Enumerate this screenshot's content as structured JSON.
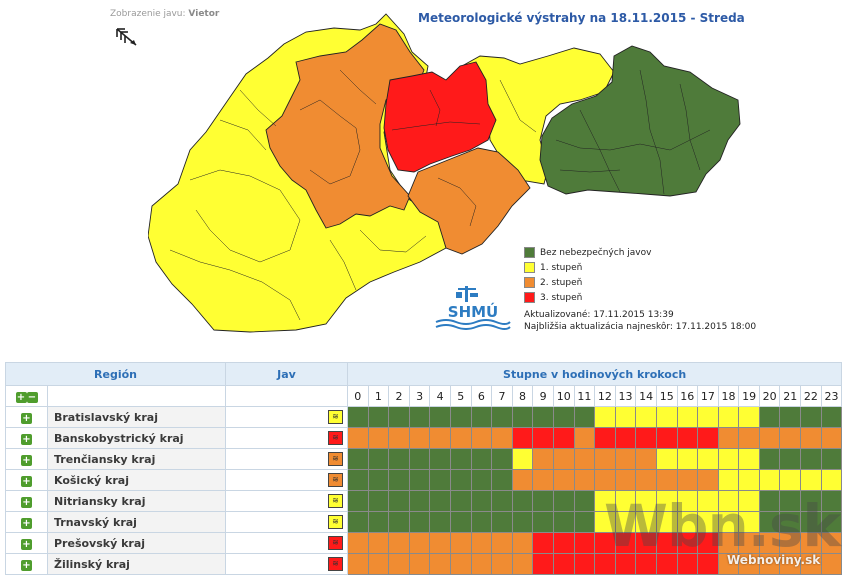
{
  "header": {
    "view_label": "Zobrazenie javu:",
    "view_value": "Vietor",
    "title": "Meteorologické výstrahy na 18.11.2015 - Streda"
  },
  "legend": [
    {
      "label": "Bez nebezpečných javov",
      "color": "#4f7b3a"
    },
    {
      "label": "1. stupeň",
      "color": "#ffff33"
    },
    {
      "label": "2. stupeň",
      "color": "#f08c32"
    },
    {
      "label": "3. stupeň",
      "color": "#ff1a1a"
    }
  ],
  "updates": {
    "updated_label": "Aktualizované:",
    "updated_value": "17.11.2015 13:39",
    "next_label": "Najbližšia aktualizácia najneskôr:",
    "next_value": "17.11.2015 18:00"
  },
  "logo_text": "SHMÚ",
  "table": {
    "col_region": "Región",
    "col_jav": "Jav",
    "col_hours": "Stupne v hodinových krokoch",
    "hours": [
      "0",
      "1",
      "2",
      "3",
      "4",
      "5",
      "6",
      "7",
      "8",
      "9",
      "10",
      "11",
      "12",
      "13",
      "14",
      "15",
      "16",
      "17",
      "18",
      "19",
      "20",
      "21",
      "22",
      "23"
    ],
    "level_colors": [
      "#4f7b3a",
      "#ffff33",
      "#f08c32",
      "#ff1a1a"
    ],
    "rows": [
      {
        "region": "Bratislavský kraj",
        "jav_level": 1,
        "levels": [
          0,
          0,
          0,
          0,
          0,
          0,
          0,
          0,
          0,
          0,
          0,
          0,
          1,
          1,
          1,
          1,
          1,
          1,
          1,
          1,
          0,
          0,
          0,
          0
        ]
      },
      {
        "region": "Banskobystrický kraj",
        "jav_level": 3,
        "levels": [
          2,
          2,
          2,
          2,
          2,
          2,
          2,
          2,
          3,
          3,
          3,
          2,
          3,
          3,
          3,
          3,
          3,
          3,
          2,
          2,
          2,
          2,
          2,
          2
        ]
      },
      {
        "region": "Trenčiansky kraj",
        "jav_level": 2,
        "levels": [
          0,
          0,
          0,
          0,
          0,
          0,
          0,
          0,
          1,
          2,
          2,
          2,
          2,
          2,
          2,
          1,
          1,
          1,
          1,
          1,
          0,
          0,
          0,
          0
        ]
      },
      {
        "region": "Košický kraj",
        "jav_level": 2,
        "levels": [
          0,
          0,
          0,
          0,
          0,
          0,
          0,
          0,
          2,
          2,
          2,
          2,
          2,
          2,
          2,
          2,
          2,
          2,
          1,
          1,
          1,
          1,
          1,
          1
        ]
      },
      {
        "region": "Nitriansky kraj",
        "jav_level": 1,
        "levels": [
          0,
          0,
          0,
          0,
          0,
          0,
          0,
          0,
          0,
          0,
          0,
          0,
          1,
          1,
          1,
          1,
          1,
          1,
          1,
          1,
          0,
          0,
          0,
          0
        ]
      },
      {
        "region": "Trnavský kraj",
        "jav_level": 1,
        "levels": [
          0,
          0,
          0,
          0,
          0,
          0,
          0,
          0,
          0,
          0,
          0,
          0,
          1,
          1,
          1,
          1,
          1,
          1,
          1,
          1,
          0,
          0,
          0,
          0
        ]
      },
      {
        "region": "Prešovský kraj",
        "jav_level": 3,
        "levels": [
          2,
          2,
          2,
          2,
          2,
          2,
          2,
          2,
          2,
          3,
          3,
          3,
          3,
          3,
          3,
          3,
          3,
          3,
          2,
          2,
          2,
          2,
          2,
          2
        ]
      },
      {
        "region": "Žilinský kraj",
        "jav_level": 3,
        "levels": [
          2,
          2,
          2,
          2,
          2,
          2,
          2,
          2,
          2,
          3,
          3,
          3,
          3,
          3,
          3,
          3,
          3,
          3,
          2,
          2,
          2,
          2,
          2,
          2
        ]
      }
    ]
  },
  "watermark": {
    "main": "Wbn.sk",
    "sub": "Webnoviny.sk"
  }
}
